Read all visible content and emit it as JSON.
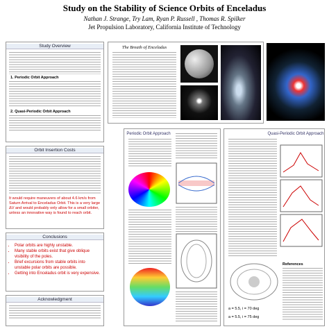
{
  "header": {
    "title": "Study on the Stability of Science Orbits of Enceladus",
    "authors": "Nathan J. Strange, Try Lam, Ryan P. Russell , Thomas R. Spilker",
    "affiliation": "Jet Propulsion Laboratory, California Institute of Technology"
  },
  "overview": {
    "title": "Study Overview",
    "section1": "1.   Periodic Orbit Approach",
    "section2": "2.   Quasi-Periodic Orbit Approach"
  },
  "insertion": {
    "title": "Orbit Insertion Costs",
    "highlight": "It would require maneuvers of about 4.6 km/s from Saturn Arrival to Enceladus Orbit. This is a very large ΔV and would probably only allow for a small orbiter, unless an innovative way is found to reach orbit."
  },
  "conclusions": {
    "title": "Conclusions",
    "items": [
      "Polar orbits are highly unstable.",
      "Many stable orbits exist that give oblique visibility of the poles.",
      "Brief excursions from stable orbits into unstable polar orbits are possible.",
      "Getting into Enceladus orbit is very expensive."
    ]
  },
  "acknowledgment": {
    "title": "Acknowledgment"
  },
  "breath": {
    "title": "The Breath of Enceladus"
  },
  "periodic": {
    "title": "Periodic Orbit Approach"
  },
  "quasi": {
    "title": "Quasi-Periodic Orbit Approach",
    "references": "References",
    "captions": [
      "a = 5.5, i = 70 deg",
      "a = 5.5, i = 75 deg"
    ]
  }
}
